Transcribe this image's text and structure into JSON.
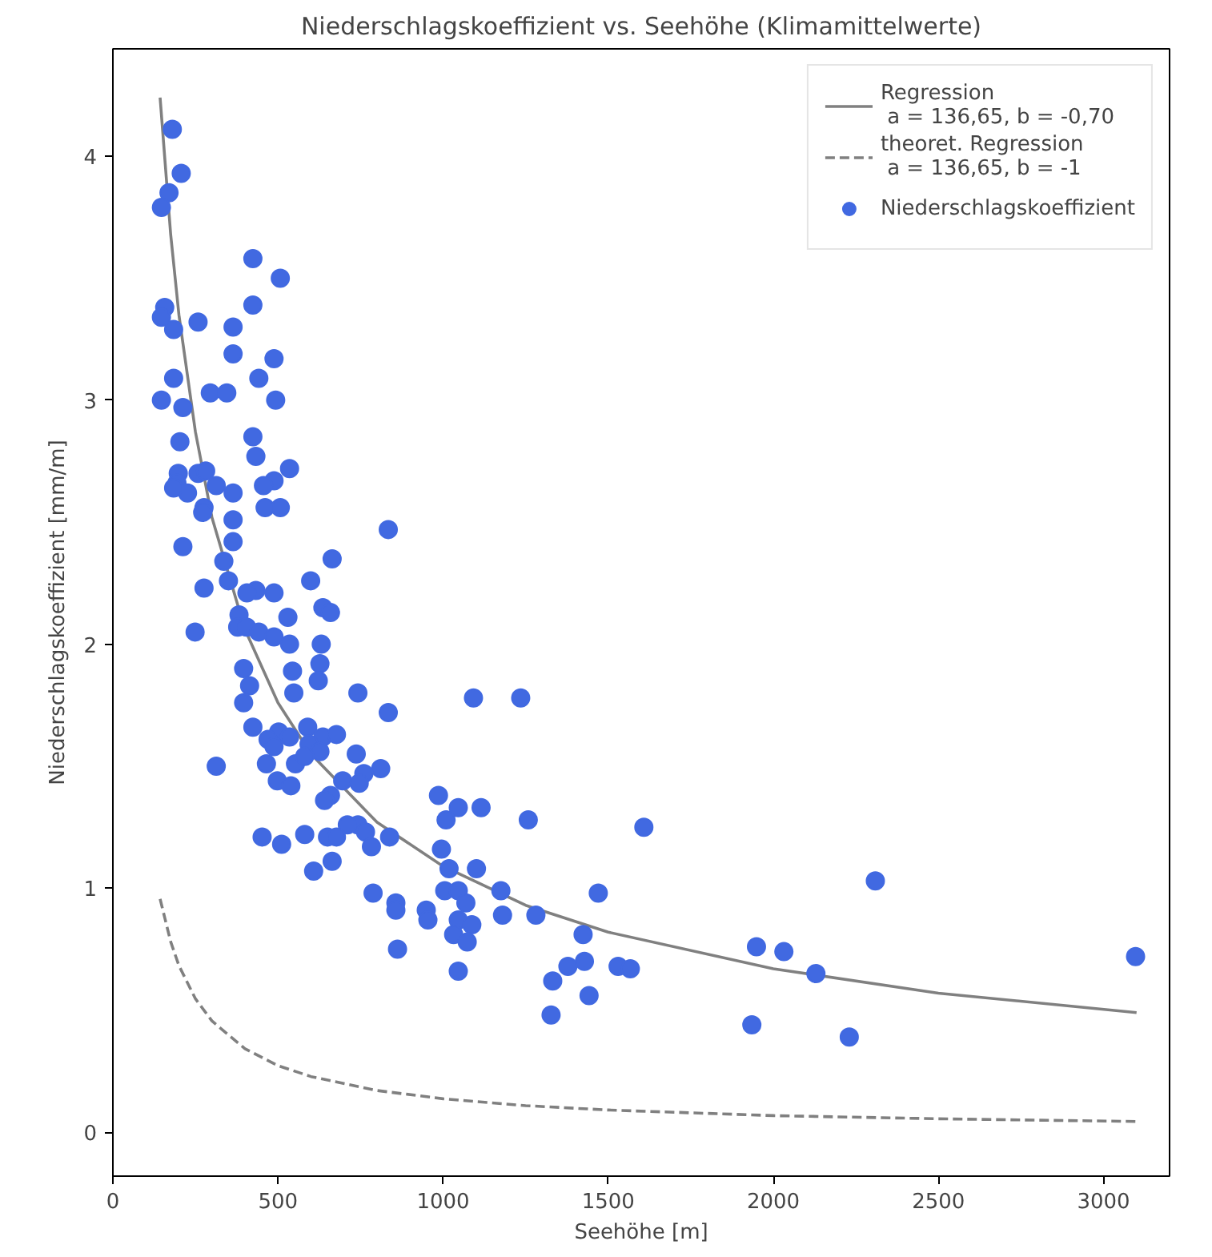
{
  "chart_data": {
    "type": "scatter",
    "title": "Niederschlagskoeffizient vs. Seehöhe (Klimamittelwerte)",
    "xlabel": "Seehöhe [m]",
    "ylabel": "Niederschlagskoeffizient [mm/m]",
    "xlim": [
      0,
      3200
    ],
    "ylim": [
      -0.18,
      4.44
    ],
    "xticks": [
      0,
      500,
      1000,
      1500,
      2000,
      2500,
      3000
    ],
    "yticks": [
      0,
      1,
      2,
      3,
      4
    ],
    "grid": false,
    "legend": "top right",
    "series": [
      {
        "name": "Regression\n a = 136,65, b = -0,70",
        "type": "line",
        "line_style": "solid",
        "color": "#808080",
        "x": [
          143,
          175,
          200,
          250,
          300,
          400,
          500,
          600,
          800,
          1000,
          1250,
          1500,
          2000,
          2500,
          3100
        ],
        "values": [
          4.24,
          3.68,
          3.35,
          2.87,
          2.52,
          2.06,
          1.76,
          1.55,
          1.27,
          1.09,
          0.93,
          0.82,
          0.67,
          0.57,
          0.49
        ]
      },
      {
        "name": "theoret. Regression\n a = 136,65, b = -1",
        "type": "line",
        "line_style": "dashed",
        "color": "#808080",
        "x": [
          143,
          175,
          200,
          250,
          300,
          400,
          500,
          600,
          800,
          1000,
          1250,
          1500,
          2000,
          2500,
          3100
        ],
        "values": [
          0.956,
          0.781,
          0.683,
          0.547,
          0.456,
          0.342,
          0.273,
          0.228,
          0.171,
          0.137,
          0.109,
          0.091,
          0.068,
          0.055,
          0.044
        ]
      },
      {
        "name": "Niederschlagskoeffizient",
        "marker": "circle",
        "color": "#4169e1",
        "x": [
          180,
          207,
          170,
          147,
          424,
          507,
          424,
          157,
          147,
          184,
          258,
          364,
          364,
          488,
          442,
          184,
          147,
          212,
          295,
          345,
          493,
          203,
          424,
          433,
          198,
          194,
          226,
          184,
          258,
          313,
          281,
          535,
          488,
          456,
          364,
          461,
          507,
          276,
          272,
          212,
          364,
          834,
          364,
          336,
          664,
          276,
          350,
          433,
          488,
          599,
          406,
          636,
          659,
          382,
          530,
          378,
          405,
          249,
          442,
          488,
          631,
          535,
          544,
          396,
          627,
          622,
          414,
          548,
          742,
          396,
          1092,
          1235,
          834,
          424,
          590,
          502,
          535,
          636,
          677,
          470,
          488,
          594,
          627,
          553,
          465,
          581,
          737,
          313,
          811,
          760,
          498,
          696,
          659,
          746,
          539,
          641,
          986,
          1046,
          1115,
          1009,
          742,
          1258,
          1608,
          710,
          765,
          650,
          452,
          511,
          995,
          581,
          677,
          783,
          838,
          664,
          608,
          788,
          1018,
          1101,
          1005,
          1175,
          1046,
          1069,
          857,
          949,
          857,
          954,
          1046,
          1032,
          1087,
          1073,
          1046,
          862,
          1180,
          1281,
          1470,
          1424,
          1428,
          1378,
          1332,
          1442,
          1530,
          1567,
          1327,
          1949,
          2032,
          2129,
          1935,
          2230,
          2309,
          3097
        ],
        "values": [
          4.11,
          3.93,
          3.85,
          3.79,
          3.58,
          3.5,
          3.39,
          3.38,
          3.34,
          3.29,
          3.32,
          3.3,
          3.19,
          3.17,
          3.09,
          3.09,
          3.0,
          2.97,
          3.03,
          3.03,
          3.0,
          2.83,
          2.85,
          2.77,
          2.7,
          2.66,
          2.62,
          2.64,
          2.7,
          2.65,
          2.71,
          2.72,
          2.67,
          2.65,
          2.62,
          2.56,
          2.56,
          2.56,
          2.54,
          2.4,
          2.51,
          2.47,
          2.42,
          2.34,
          2.35,
          2.23,
          2.26,
          2.22,
          2.21,
          2.26,
          2.21,
          2.15,
          2.13,
          2.12,
          2.11,
          2.07,
          2.07,
          2.05,
          2.05,
          2.03,
          2.0,
          2.0,
          1.89,
          1.9,
          1.92,
          1.85,
          1.83,
          1.8,
          1.8,
          1.76,
          1.78,
          1.78,
          1.72,
          1.66,
          1.66,
          1.64,
          1.62,
          1.62,
          1.63,
          1.61,
          1.58,
          1.59,
          1.56,
          1.51,
          1.51,
          1.54,
          1.55,
          1.5,
          1.49,
          1.47,
          1.44,
          1.44,
          1.38,
          1.43,
          1.42,
          1.36,
          1.38,
          1.33,
          1.33,
          1.28,
          1.26,
          1.28,
          1.25,
          1.26,
          1.23,
          1.21,
          1.21,
          1.18,
          1.16,
          1.22,
          1.21,
          1.17,
          1.21,
          1.11,
          1.07,
          0.98,
          1.08,
          1.08,
          0.99,
          0.99,
          0.99,
          0.94,
          0.94,
          0.91,
          0.91,
          0.87,
          0.87,
          0.81,
          0.85,
          0.78,
          0.66,
          0.75,
          0.89,
          0.89,
          0.98,
          0.81,
          0.7,
          0.68,
          0.62,
          0.56,
          0.68,
          0.67,
          0.48,
          0.76,
          0.74,
          0.65,
          0.44,
          0.39,
          1.03,
          0.72
        ]
      }
    ]
  }
}
